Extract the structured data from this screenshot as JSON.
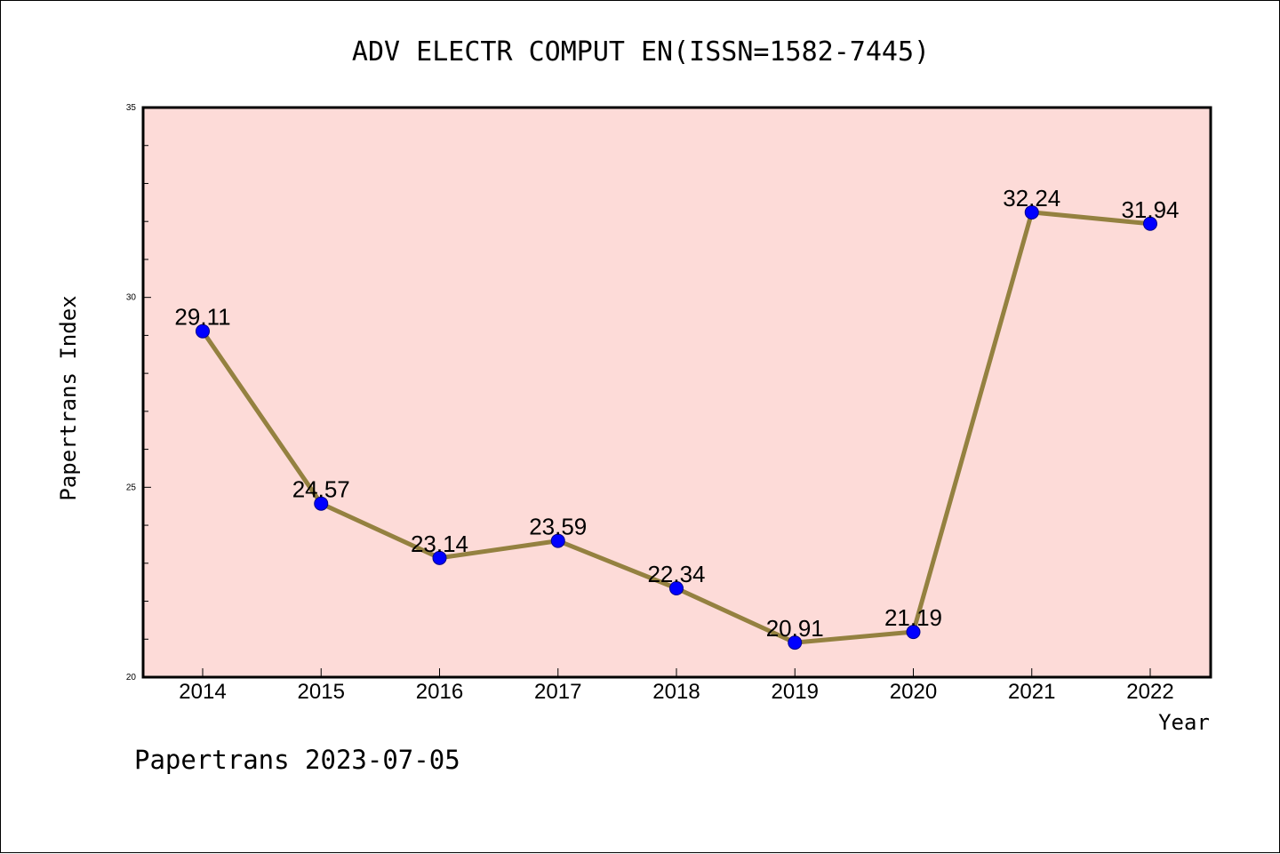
{
  "chart_data": {
    "type": "line",
    "title": "ADV ELECTR COMPUT EN(ISSN=1582-7445)",
    "xlabel": "Year",
    "ylabel": "Papertrans Index",
    "categories": [
      "2014",
      "2015",
      "2016",
      "2017",
      "2018",
      "2019",
      "2020",
      "2021",
      "2022"
    ],
    "series": [
      {
        "values": [
          29.11,
          24.57,
          23.14,
          23.59,
          22.34,
          20.91,
          21.19,
          32.24,
          31.94
        ]
      }
    ],
    "data_labels": [
      "29.11",
      "24.57",
      "23.14",
      "23.59",
      "22.34",
      "20.91",
      "21.19",
      "32.24",
      "31.94"
    ],
    "ylim": [
      20,
      35
    ],
    "yticks": [
      20,
      25,
      30,
      35
    ],
    "ytick_labels": [
      "20",
      "25",
      "30",
      "35"
    ],
    "ytick_minor_step": 1,
    "grid": false,
    "legend": "none",
    "colors": {
      "plot_background": "#fddbd8",
      "line": "#948140",
      "marker_fill": "#0000ff",
      "marker_edge": "#00008b"
    }
  },
  "footer": "Papertrans 2023-07-05"
}
